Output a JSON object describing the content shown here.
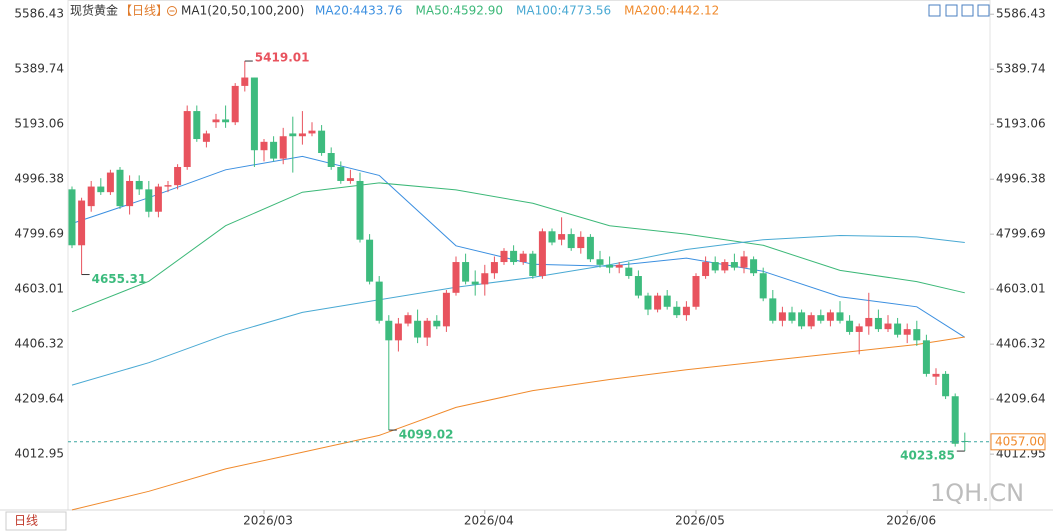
{
  "chart_data": {
    "type": "candlestick",
    "title": "现货黄金",
    "period": "【日线】",
    "indicator": "MA1(20,50,100,200)",
    "period_button": "日线",
    "watermark": "1QH.CN",
    "up_color": "#e8535e",
    "down_color": "#3dbb7e",
    "ylim": [
      3813.1,
      5637.3
    ],
    "yticks": [
      4012.95,
      4209.64,
      4406.32,
      4603.01,
      4799.69,
      4996.38,
      5193.06,
      5389.74,
      5586.43
    ],
    "categories": [
      null,
      null,
      null,
      null,
      null,
      null,
      null,
      null,
      null,
      null,
      null,
      null,
      null,
      null,
      null,
      null,
      null,
      null,
      null,
      null,
      "2026/03",
      null,
      null,
      null,
      null,
      null,
      null,
      null,
      null,
      null,
      null,
      null,
      null,
      null,
      null,
      null,
      null,
      null,
      null,
      null,
      null,
      null,
      null,
      "2026/04",
      null,
      null,
      null,
      null,
      null,
      null,
      null,
      null,
      null,
      null,
      null,
      null,
      null,
      null,
      null,
      null,
      null,
      null,
      null,
      null,
      null,
      "2026/05",
      null,
      null,
      null,
      null,
      null,
      null,
      null,
      null,
      null,
      null,
      null,
      null,
      null,
      null,
      null,
      null,
      null,
      null,
      null,
      null,
      null,
      "2026/06",
      null,
      null,
      null,
      null,
      null,
      null
    ],
    "open": [
      4960,
      4760,
      4900,
      4970,
      4950,
      5030,
      4900,
      4990,
      4960,
      4880,
      4970,
      4975,
      5040,
      5240,
      5130,
      5200,
      5210,
      5200,
      5330,
      5360,
      5100,
      5130,
      5070,
      5160,
      5150,
      5160,
      5170,
      5090,
      5040,
      4990,
      4990,
      4780,
      4630,
      4490,
      4420,
      4480,
      4490,
      4430,
      4490,
      4470,
      4590,
      4700,
      4630,
      4620,
      4660,
      4700,
      4740,
      4700,
      4730,
      4650,
      4810,
      4780,
      4800,
      4750,
      4790,
      4710,
      4690,
      4680,
      4680,
      4650,
      4580,
      4530,
      4580,
      4540,
      4510,
      4540,
      4650,
      4700,
      4670,
      4700,
      4680,
      4710,
      4660,
      4570,
      4490,
      4520,
      4520,
      4470,
      4510,
      4490,
      4520,
      4490,
      4450,
      4470,
      4500,
      4460,
      4480,
      4440,
      4460,
      4420,
      4290,
      4300,
      4220,
      4060
    ],
    "high": [
      4970,
      4930,
      4990,
      5000,
      5030,
      5040,
      5010,
      5010,
      4990,
      4980,
      4990,
      5050,
      5260,
      5260,
      5170,
      5230,
      5260,
      5340,
      5419.01,
      5360,
      5140,
      5150,
      5180,
      5220,
      5240,
      5200,
      5190,
      5110,
      5060,
      5030,
      5020,
      4800,
      4650,
      4510,
      4500,
      4520,
      4530,
      4500,
      4510,
      4600,
      4720,
      4730,
      4670,
      4690,
      4720,
      4750,
      4760,
      4740,
      4740,
      4820,
      4820,
      4860,
      4820,
      4810,
      4800,
      4740,
      4720,
      4700,
      4700,
      4670,
      4590,
      4590,
      4600,
      4560,
      4560,
      4660,
      4720,
      4720,
      4710,
      4730,
      4740,
      4720,
      4680,
      4600,
      4540,
      4540,
      4530,
      4520,
      4530,
      4530,
      4560,
      4510,
      4480,
      4590,
      4530,
      4510,
      4500,
      4480,
      4490,
      4440,
      4320,
      4310,
      4230,
      4090
    ],
    "low": [
      4750,
      4655.31,
      4880,
      4940,
      4940,
      4890,
      4870,
      4940,
      4860,
      4860,
      4950,
      4960,
      5030,
      5130,
      5110,
      5180,
      5180,
      5190,
      5310,
      5040,
      5060,
      5060,
      5050,
      5020,
      5120,
      5150,
      5080,
      5030,
      4980,
      4980,
      4770,
      4620,
      4480,
      4099.02,
      4380,
      4470,
      4410,
      4400,
      4460,
      4450,
      4580,
      4620,
      4580,
      4580,
      4640,
      4690,
      4690,
      4690,
      4640,
      4640,
      4760,
      4760,
      4740,
      4730,
      4700,
      4680,
      4660,
      4660,
      4640,
      4570,
      4510,
      4520,
      4530,
      4500,
      4490,
      4530,
      4640,
      4660,
      4660,
      4670,
      4660,
      4650,
      4560,
      4480,
      4470,
      4480,
      4460,
      4460,
      4480,
      4470,
      4480,
      4440,
      4370,
      4440,
      4450,
      4450,
      4430,
      4410,
      4400,
      4290,
      4260,
      4210,
      4040,
      4023.85
    ],
    "close": [
      4760,
      4920,
      4970,
      4950,
      5020,
      4900,
      4990,
      4960,
      4880,
      4970,
      4975,
      5040,
      5240,
      5140,
      5160,
      5210,
      5200,
      5330,
      5360,
      5100,
      5130,
      5070,
      5150,
      5150,
      5160,
      5170,
      5090,
      5040,
      4990,
      5000,
      4780,
      4630,
      4490,
      4420,
      4480,
      4510,
      4430,
      4490,
      4470,
      4590,
      4700,
      4630,
      4620,
      4660,
      4700,
      4740,
      4700,
      4730,
      4650,
      4810,
      4770,
      4800,
      4750,
      4790,
      4710,
      4690,
      4680,
      4690,
      4650,
      4580,
      4530,
      4580,
      4540,
      4510,
      4540,
      4650,
      4700,
      4670,
      4700,
      4680,
      4720,
      4660,
      4570,
      4490,
      4520,
      4490,
      4470,
      4510,
      4490,
      4520,
      4490,
      4450,
      4470,
      4500,
      4460,
      4480,
      4440,
      4460,
      4420,
      4300,
      4300,
      4220,
      4050,
      4057
    ],
    "extreme_labels": [
      5419.01,
      4655.31,
      4099.02,
      4023.85
    ],
    "last_price": {
      "value": 4057,
      "label": "4057.00"
    },
    "last_price_color": "#f08a2c",
    "series": [
      {
        "name": "MA20:4433.76",
        "color": "#3b8fe0",
        "x": [
          0,
          8,
          16,
          24,
          32,
          40,
          48,
          56,
          64,
          72,
          80,
          88,
          93
        ],
        "values": [
          4838,
          4930,
          5030,
          5078,
          5010,
          4758,
          4692,
          4685,
          4714,
          4667,
          4576,
          4540,
          4431
        ]
      },
      {
        "name": "MA50:4592.90",
        "color": "#3cb878",
        "x": [
          0,
          8,
          16,
          24,
          32,
          40,
          48,
          56,
          64,
          72,
          80,
          88,
          93
        ],
        "values": [
          4522,
          4631,
          4830,
          4950,
          4983,
          4958,
          4910,
          4830,
          4800,
          4760,
          4670,
          4630,
          4590
        ]
      },
      {
        "name": "MA100:4773.56",
        "color": "#49a9d3",
        "x": [
          0,
          8,
          16,
          24,
          32,
          40,
          48,
          56,
          64,
          72,
          80,
          88,
          93
        ],
        "values": [
          4260,
          4340,
          4440,
          4520,
          4565,
          4610,
          4645,
          4690,
          4745,
          4780,
          4795,
          4790,
          4770
        ]
      },
      {
        "name": "MA200:4442.12",
        "color": "#f08a2c",
        "x": [
          0,
          8,
          16,
          24,
          32,
          40,
          48,
          56,
          64,
          72,
          80,
          88,
          93
        ],
        "values": [
          3813.5,
          3880,
          3960,
          4020,
          4080,
          4180,
          4240,
          4280,
          4315,
          4345,
          4375,
          4405,
          4432
        ]
      }
    ]
  }
}
